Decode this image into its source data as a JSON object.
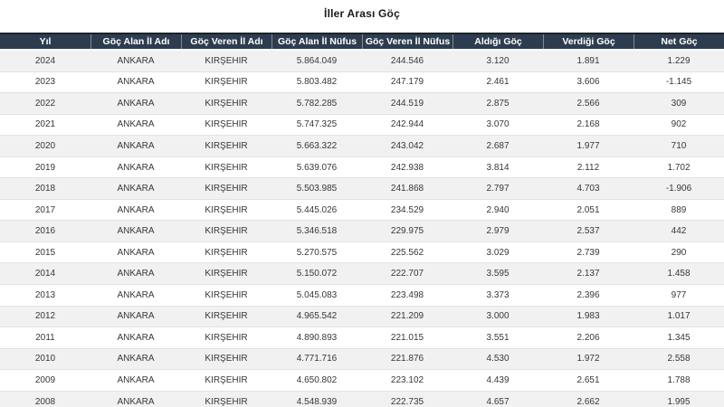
{
  "page": {
    "title": "İller Arası Göç"
  },
  "colors": {
    "header_bg": "#2d3d4f",
    "header_top_border": "#19242e",
    "header_text": "#ffffff",
    "row_stripe": "#f1f1f1",
    "row_border": "#e3e3e3",
    "cell_text": "#373737"
  },
  "chart_data": {
    "type": "table",
    "title": "İller Arası Göç",
    "columns": [
      "Yıl",
      "Göç Alan İl Adı",
      "Göç Veren İl Adı",
      "Göç Alan İl Nüfus",
      "Göç Veren İl Nüfus",
      "Aldığı Göç",
      "Verdiği Göç",
      "Net Göç"
    ],
    "rows": [
      [
        "2024",
        "ANKARA",
        "KIRŞEHİR",
        "5.864.049",
        "244.546",
        "3.120",
        "1.891",
        "1.229"
      ],
      [
        "2023",
        "ANKARA",
        "KIRŞEHİR",
        "5.803.482",
        "247.179",
        "2.461",
        "3.606",
        "-1.145"
      ],
      [
        "2022",
        "ANKARA",
        "KIRŞEHİR",
        "5.782.285",
        "244.519",
        "2.875",
        "2.566",
        "309"
      ],
      [
        "2021",
        "ANKARA",
        "KIRŞEHİR",
        "5.747.325",
        "242.944",
        "3.070",
        "2.168",
        "902"
      ],
      [
        "2020",
        "ANKARA",
        "KIRŞEHİR",
        "5.663.322",
        "243.042",
        "2.687",
        "1.977",
        "710"
      ],
      [
        "2019",
        "ANKARA",
        "KIRŞEHİR",
        "5.639.076",
        "242.938",
        "3.814",
        "2.112",
        "1.702"
      ],
      [
        "2018",
        "ANKARA",
        "KIRŞEHİR",
        "5.503.985",
        "241.868",
        "2.797",
        "4.703",
        "-1.906"
      ],
      [
        "2017",
        "ANKARA",
        "KIRŞEHİR",
        "5.445.026",
        "234.529",
        "2.940",
        "2.051",
        "889"
      ],
      [
        "2016",
        "ANKARA",
        "KIRŞEHİR",
        "5.346.518",
        "229.975",
        "2.979",
        "2.537",
        "442"
      ],
      [
        "2015",
        "ANKARA",
        "KIRŞEHİR",
        "5.270.575",
        "225.562",
        "3.029",
        "2.739",
        "290"
      ],
      [
        "2014",
        "ANKARA",
        "KIRŞEHİR",
        "5.150.072",
        "222.707",
        "3.595",
        "2.137",
        "1.458"
      ],
      [
        "2013",
        "ANKARA",
        "KIRŞEHİR",
        "5.045.083",
        "223.498",
        "3.373",
        "2.396",
        "977"
      ],
      [
        "2012",
        "ANKARA",
        "KIRŞEHİR",
        "4.965.542",
        "221.209",
        "3.000",
        "1.983",
        "1.017"
      ],
      [
        "2011",
        "ANKARA",
        "KIRŞEHİR",
        "4.890.893",
        "221.015",
        "3.551",
        "2.206",
        "1.345"
      ],
      [
        "2010",
        "ANKARA",
        "KIRŞEHİR",
        "4.771.716",
        "221.876",
        "4.530",
        "1.972",
        "2.558"
      ],
      [
        "2009",
        "ANKARA",
        "KIRŞEHİR",
        "4.650.802",
        "223.102",
        "4.439",
        "2.651",
        "1.788"
      ],
      [
        "2008",
        "ANKARA",
        "KIRŞEHİR",
        "4.548.939",
        "222.735",
        "4.657",
        "2.662",
        "1.995"
      ]
    ]
  }
}
